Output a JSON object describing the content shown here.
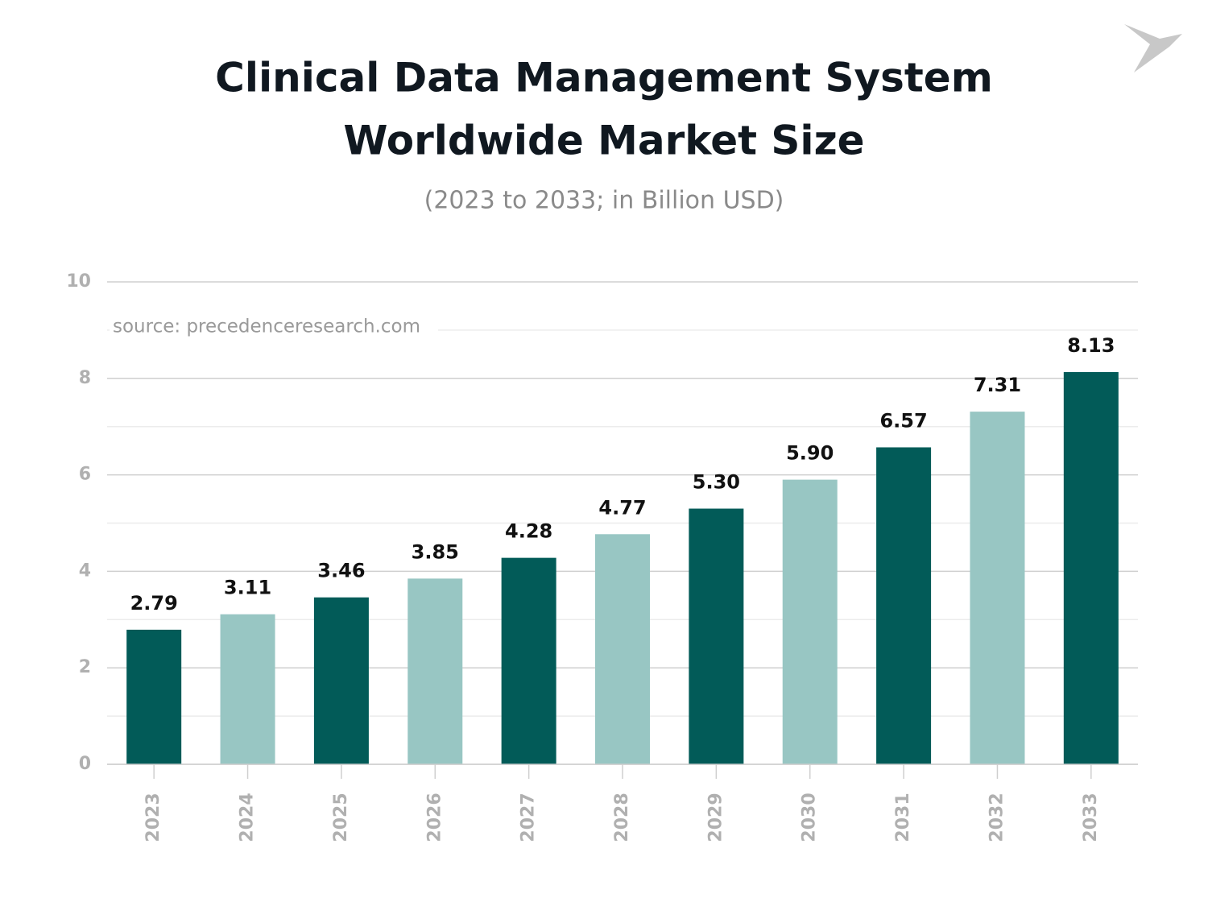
{
  "chart_data": {
    "type": "bar",
    "title": [
      "Clinical Data Management System",
      "Worldwide Market Size"
    ],
    "subtitle": "(2023 to 2033; in Billion USD)",
    "annotation": "source: precedenceresearch.com",
    "categories": [
      "2023",
      "2024",
      "2025",
      "2026",
      "2027",
      "2028",
      "2029",
      "2030",
      "2031",
      "2032",
      "2033"
    ],
    "values": [
      2.79,
      3.11,
      3.46,
      3.85,
      4.28,
      4.77,
      5.3,
      5.9,
      6.57,
      7.31,
      8.13
    ],
    "value_labels": [
      "2.79",
      "3.11",
      "3.46",
      "3.85",
      "4.28",
      "4.77",
      "5.30",
      "5.90",
      "6.57",
      "7.31",
      "8.13"
    ],
    "colors": [
      "#025b58",
      "#98c6c3",
      "#025b58",
      "#98c6c3",
      "#025b58",
      "#98c6c3",
      "#025b58",
      "#98c6c3",
      "#025b58",
      "#98c6c3",
      "#025b58"
    ],
    "ylim": [
      0,
      10
    ],
    "yticks": [
      0,
      2,
      4,
      6,
      8,
      10
    ],
    "minor_yticks": [
      1,
      3,
      5,
      7,
      9
    ],
    "grid": true
  }
}
